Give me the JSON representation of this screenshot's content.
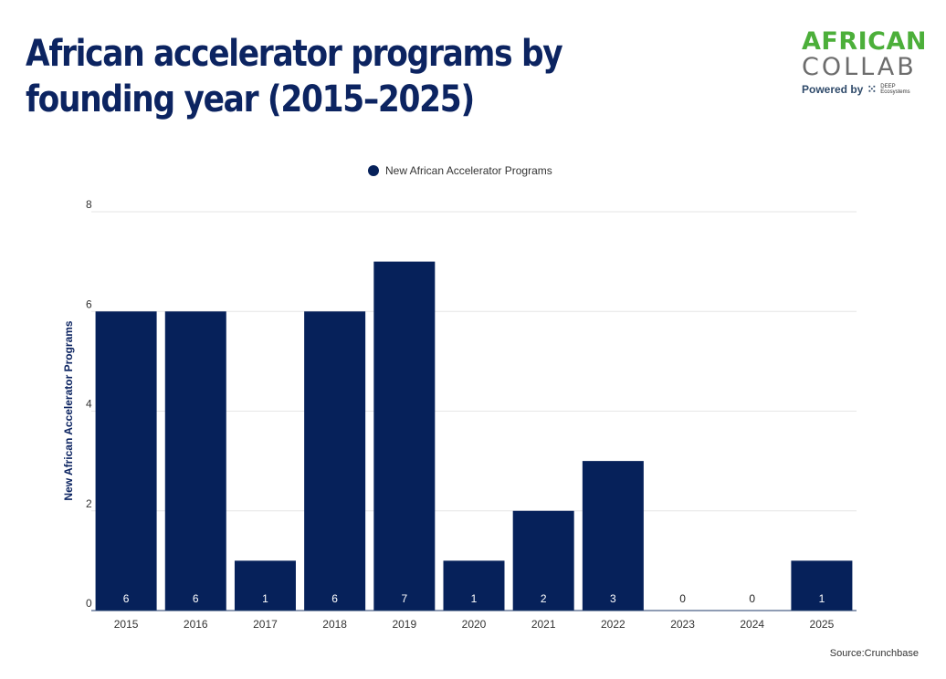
{
  "title": "African accelerator programs by founding year (2015–2025)",
  "logo": {
    "line1": "AFRICAN",
    "line2": "COLLAB",
    "powered_by": "Powered by",
    "partner": "DEEP Ecosystems"
  },
  "source": "Source:Crunchbase",
  "colors": {
    "bar": "#06215a",
    "title": "#0c2461",
    "grid": "#e6e6e6"
  },
  "chart_data": {
    "type": "bar",
    "categories": [
      "2015",
      "2016",
      "2017",
      "2018",
      "2019",
      "2020",
      "2021",
      "2022",
      "2023",
      "2024",
      "2025"
    ],
    "series": [
      {
        "name": "New African Accelerator Programs",
        "values": [
          6,
          6,
          1,
          6,
          7,
          1,
          2,
          3,
          0,
          0,
          1
        ]
      }
    ],
    "xlabel": "",
    "ylabel": "New African Accelerator Programs",
    "ylim": [
      0,
      8
    ],
    "yticks": [
      0,
      2,
      4,
      6,
      8
    ],
    "grid": true,
    "legend": "top-center",
    "data_labels": true
  }
}
